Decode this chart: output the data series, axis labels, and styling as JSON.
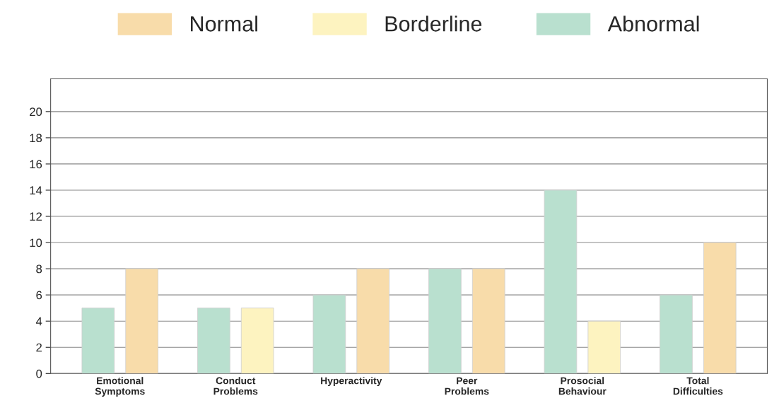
{
  "chart_data": {
    "type": "bar",
    "categories": [
      "Emotional\nSymptoms",
      "Conduct\nProblems",
      "Hyperactivity",
      "Peer\nProblems",
      "Prosocial\nBehaviour",
      "Total\nDifficulties"
    ],
    "series": [
      {
        "name": "Normal",
        "color": "#f8dcaa",
        "values": [
          8,
          null,
          8,
          8,
          null,
          10
        ]
      },
      {
        "name": "Borderline",
        "color": "#fdf3c0",
        "values": [
          null,
          5,
          null,
          null,
          4,
          null
        ]
      },
      {
        "name": "Abnormal",
        "color": "#b9e0cf",
        "values": [
          5,
          5,
          6,
          8,
          14,
          6
        ]
      }
    ],
    "ylim": [
      0,
      22.5
    ],
    "yticks": [
      0,
      2,
      4,
      6,
      8,
      10,
      12,
      14,
      16,
      18,
      20
    ],
    "grid": "y",
    "legend": "top"
  }
}
